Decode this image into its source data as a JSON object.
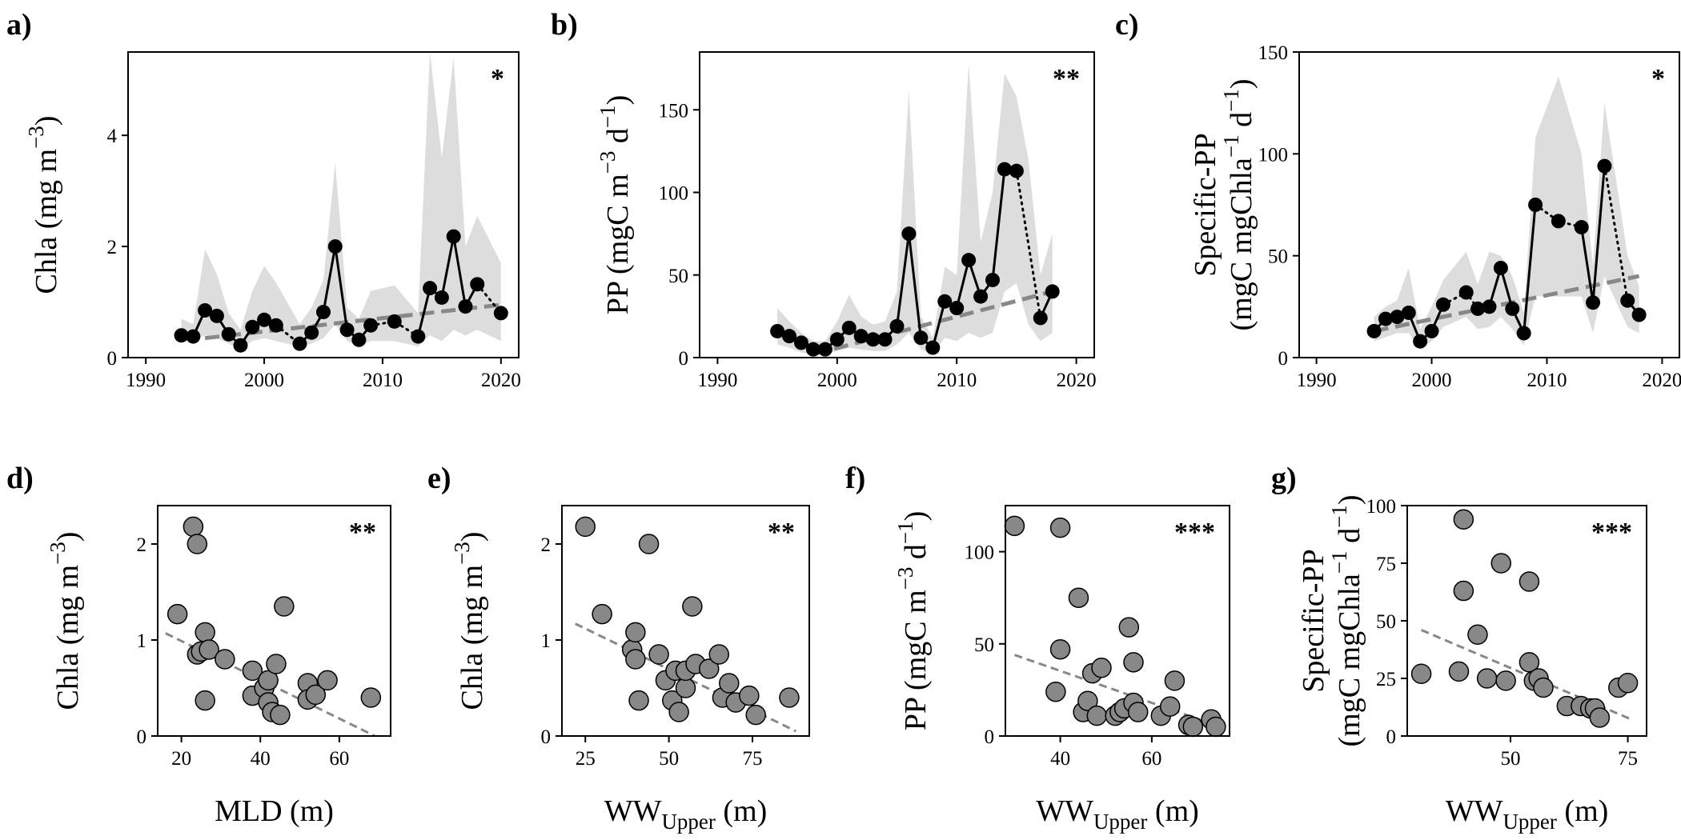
{
  "colors": {
    "line": "#000000",
    "band": "#dddddd",
    "trend": "#888888",
    "scatter_fill": "#888888",
    "scatter_edge": "#000000",
    "background": "#ffffff"
  },
  "chart_data": [
    {
      "panel": "a)",
      "type": "line",
      "significance": "*",
      "xlabel": "",
      "ylabel": "Chla (mg m",
      "ylabel_sup": "−3",
      "ylabel_tail": ")",
      "xlim": [
        1988.5,
        2021.5
      ],
      "ylim": [
        0,
        5.5
      ],
      "xticks": [
        1990,
        2000,
        2010,
        2020
      ],
      "yticks": [
        0,
        2,
        4
      ],
      "series": [
        {
          "x": [
            1993,
            1994,
            1995,
            1996,
            1997,
            1998,
            1999,
            2000,
            2001
          ],
          "y": [
            0.4,
            0.38,
            0.85,
            0.75,
            0.42,
            0.22,
            0.55,
            0.68,
            0.58
          ]
        },
        {
          "x": [
            2003,
            2004,
            2005,
            2006,
            2007,
            2008,
            2009
          ],
          "y": [
            0.25,
            0.45,
            0.82,
            2.0,
            0.5,
            0.32,
            0.58
          ]
        },
        {
          "x": [
            2013,
            2014,
            2015,
            2016,
            2017,
            2018
          ],
          "y": [
            0.38,
            1.25,
            1.08,
            2.18,
            0.92,
            1.32
          ]
        }
      ],
      "gaps": [
        {
          "x": [
            2001,
            2003
          ],
          "y": [
            0.58,
            0.25
          ]
        },
        {
          "x": [
            2009,
            2011,
            2013
          ],
          "y": [
            0.58,
            0.65,
            0.38
          ]
        },
        {
          "x": [
            2018,
            2020
          ],
          "y": [
            1.32,
            0.8
          ]
        }
      ],
      "points": {
        "x": [
          1993,
          1994,
          1995,
          1996,
          1997,
          1998,
          1999,
          2000,
          2001,
          2003,
          2004,
          2005,
          2006,
          2007,
          2008,
          2009,
          2011,
          2013,
          2014,
          2015,
          2016,
          2017,
          2018,
          2020
        ],
        "y": [
          0.4,
          0.38,
          0.85,
          0.75,
          0.42,
          0.22,
          0.55,
          0.68,
          0.58,
          0.25,
          0.45,
          0.82,
          2.0,
          0.5,
          0.32,
          0.58,
          0.65,
          0.38,
          1.25,
          1.08,
          2.18,
          0.92,
          1.32,
          0.8
        ]
      },
      "band": {
        "x": [
          1993,
          1994,
          1995,
          1996,
          1997,
          1998,
          1999,
          2000,
          2001,
          2003,
          2004,
          2005,
          2006,
          2007,
          2008,
          2009,
          2011,
          2013,
          2014,
          2015,
          2016,
          2017,
          2018,
          2020
        ],
        "lower": [
          0.3,
          0.3,
          0.4,
          0.35,
          0.25,
          0.15,
          0.3,
          0.35,
          0.3,
          0.2,
          0.25,
          0.35,
          0.6,
          0.3,
          0.2,
          0.3,
          0.3,
          0.2,
          0.4,
          0.3,
          0.5,
          0.4,
          0.5,
          0.3
        ],
        "upper": [
          0.7,
          0.6,
          1.95,
          1.5,
          0.8,
          0.5,
          1.2,
          1.65,
          1.35,
          0.6,
          0.9,
          1.4,
          3.5,
          0.9,
          0.7,
          1.2,
          1.3,
          0.8,
          5.5,
          3.6,
          5.4,
          2.0,
          2.55,
          1.7
        ]
      },
      "trend": {
        "x": [
          1995,
          2020
        ],
        "y": [
          0.35,
          0.95
        ]
      }
    },
    {
      "panel": "b)",
      "type": "line",
      "significance": "**",
      "xlabel": "",
      "ylabel": "PP (mgC m",
      "ylabel_sup": "−3",
      "ylabel_mid": " d",
      "ylabel_sup2": "−1",
      "ylabel_tail": ")",
      "xlim": [
        1988.5,
        2021.5
      ],
      "ylim": [
        0,
        185
      ],
      "xticks": [
        1990,
        2000,
        2010,
        2020
      ],
      "yticks": [
        0,
        50,
        100,
        150
      ],
      "series": [
        {
          "x": [
            1995,
            1996,
            1997,
            1998,
            1999,
            2000,
            2001,
            2002,
            2003,
            2004,
            2005,
            2006,
            2007,
            2008,
            2009,
            2010,
            2011,
            2012,
            2013,
            2014,
            2015
          ],
          "y": [
            16,
            13,
            9,
            5,
            5,
            11,
            18,
            13,
            11,
            11,
            19,
            75,
            12,
            6,
            34,
            30,
            59,
            37,
            47,
            114,
            113
          ]
        },
        {
          "x": [
            2017,
            2018
          ],
          "y": [
            24,
            40
          ]
        }
      ],
      "gaps": [
        {
          "x": [
            2015,
            2017
          ],
          "y": [
            113,
            24
          ]
        }
      ],
      "points": {
        "x": [
          1995,
          1996,
          1997,
          1998,
          1999,
          2000,
          2001,
          2002,
          2003,
          2004,
          2005,
          2006,
          2007,
          2008,
          2009,
          2010,
          2011,
          2012,
          2013,
          2014,
          2015,
          2017,
          2018
        ],
        "y": [
          16,
          13,
          9,
          5,
          5,
          11,
          18,
          13,
          11,
          11,
          19,
          75,
          12,
          6,
          34,
          30,
          59,
          37,
          47,
          114,
          113,
          24,
          40
        ]
      },
      "band": {
        "x": [
          1995,
          1996,
          1997,
          1998,
          1999,
          2000,
          2001,
          2002,
          2003,
          2004,
          2005,
          2006,
          2007,
          2008,
          2009,
          2010,
          2011,
          2012,
          2013,
          2014,
          2015,
          2016,
          2017,
          2018
        ],
        "lower": [
          8,
          6,
          3,
          2,
          2,
          4,
          6,
          5,
          4,
          4,
          8,
          15,
          5,
          2,
          12,
          10,
          15,
          12,
          15,
          40,
          45,
          20,
          10,
          15
        ],
        "upper": [
          30,
          22,
          15,
          10,
          10,
          22,
          38,
          25,
          20,
          22,
          40,
          162,
          25,
          12,
          55,
          50,
          178,
          70,
          100,
          172,
          158,
          120,
          50,
          75
        ]
      },
      "trend": {
        "x": [
          1998,
          2018
        ],
        "y": [
          2,
          40
        ]
      }
    },
    {
      "panel": "c)",
      "type": "line",
      "significance": "*",
      "xlabel": "",
      "ylabel_line1": "Specific-PP",
      "ylabel": "(mgC mgChla",
      "ylabel_sup": "−1",
      "ylabel_mid": " d",
      "ylabel_sup2": "−1",
      "ylabel_tail": ")",
      "xlim": [
        1988.5,
        2021.5
      ],
      "ylim": [
        0,
        150
      ],
      "xticks": [
        1990,
        2000,
        2010,
        2020
      ],
      "yticks": [
        0,
        50,
        100,
        150
      ],
      "series": [
        {
          "x": [
            1995,
            1996,
            1997,
            1998,
            1999,
            2000,
            2001
          ],
          "y": [
            13,
            19,
            20,
            22,
            8,
            13,
            26
          ]
        },
        {
          "x": [
            2004,
            2005,
            2006,
            2007,
            2008,
            2009
          ],
          "y": [
            24,
            25,
            44,
            24,
            12,
            75
          ]
        },
        {
          "x": [
            2013,
            2014,
            2015
          ],
          "y": [
            64,
            27,
            94
          ]
        },
        {
          "x": [
            2017,
            2018
          ],
          "y": [
            28,
            21
          ]
        }
      ],
      "gaps": [
        {
          "x": [
            2001,
            2003,
            2004
          ],
          "y": [
            26,
            32,
            24
          ]
        },
        {
          "x": [
            2009,
            2011,
            2013
          ],
          "y": [
            75,
            67,
            64
          ]
        },
        {
          "x": [
            2015,
            2017
          ],
          "y": [
            94,
            28
          ]
        }
      ],
      "points": {
        "x": [
          1995,
          1996,
          1997,
          1998,
          1999,
          2000,
          2001,
          2003,
          2004,
          2005,
          2006,
          2007,
          2008,
          2009,
          2011,
          2013,
          2014,
          2015,
          2017,
          2018
        ],
        "y": [
          13,
          19,
          20,
          22,
          8,
          13,
          26,
          32,
          24,
          25,
          44,
          24,
          12,
          75,
          67,
          64,
          27,
          94,
          28,
          21
        ]
      },
      "band": {
        "x": [
          1995,
          1996,
          1997,
          1998,
          1999,
          2000,
          2001,
          2003,
          2004,
          2005,
          2006,
          2007,
          2008,
          2009,
          2011,
          2013,
          2014,
          2015,
          2017,
          2018
        ],
        "lower": [
          8,
          10,
          12,
          12,
          4,
          8,
          15,
          20,
          14,
          15,
          20,
          14,
          6,
          30,
          30,
          30,
          12,
          40,
          15,
          12
        ],
        "upper": [
          20,
          25,
          28,
          44,
          14,
          25,
          38,
          52,
          36,
          52,
          50,
          40,
          22,
          108,
          138,
          100,
          45,
          125,
          50,
          35
        ]
      },
      "trend": {
        "x": [
          1995,
          2018
        ],
        "y": [
          13,
          40
        ]
      }
    },
    {
      "panel": "d)",
      "type": "scatter",
      "significance": "**",
      "xlabel": "MLD (m)",
      "ylabel": "Chla (mg m",
      "ylabel_sup": "−3",
      "ylabel_tail": ")",
      "xlim": [
        14,
        73
      ],
      "ylim": [
        0,
        2.4
      ],
      "xticks": [
        20,
        40,
        60
      ],
      "yticks": [
        0,
        1,
        2
      ],
      "points": {
        "x": [
          19,
          23,
          24,
          24,
          25,
          26,
          26,
          27,
          31,
          38,
          38,
          41,
          42,
          42,
          43,
          44,
          45,
          46,
          52,
          52,
          54,
          57,
          68
        ],
        "y": [
          1.27,
          2.18,
          0.85,
          2.0,
          0.88,
          1.08,
          0.37,
          0.9,
          0.8,
          0.68,
          0.42,
          0.5,
          0.35,
          0.58,
          0.25,
          0.75,
          0.22,
          1.35,
          0.55,
          0.38,
          0.43,
          0.58,
          0.4
        ]
      },
      "trend": {
        "x": [
          16,
          69
        ],
        "y": [
          1.07,
          0.0
        ]
      }
    },
    {
      "panel": "e)",
      "type": "scatter",
      "significance": "**",
      "xlabel": "WW",
      "xlabel_sub": "Upper",
      "xlabel_tail": " (m)",
      "ylabel": "Chla (mg m",
      "ylabel_sup": "−3",
      "ylabel_tail": ")",
      "xlim": [
        18,
        92
      ],
      "ylim": [
        0,
        2.4
      ],
      "xticks": [
        25,
        50,
        75
      ],
      "yticks": [
        0,
        1,
        2
      ],
      "points": {
        "x": [
          25,
          30,
          39,
          40,
          40,
          41,
          44,
          47,
          49,
          51,
          52,
          53,
          55,
          55,
          57,
          58,
          62,
          65,
          66,
          68,
          70,
          74,
          76,
          86
        ],
        "y": [
          2.18,
          1.27,
          0.9,
          1.08,
          0.8,
          0.37,
          2.0,
          0.85,
          0.58,
          0.37,
          0.68,
          0.25,
          0.5,
          0.68,
          1.35,
          0.75,
          0.7,
          0.85,
          0.4,
          0.55,
          0.35,
          0.42,
          0.22,
          0.4
        ]
      },
      "trend": {
        "x": [
          22,
          88
        ],
        "y": [
          1.17,
          0.05
        ]
      }
    },
    {
      "panel": "f)",
      "type": "scatter",
      "significance": "***",
      "xlabel": "WW",
      "xlabel_sub": "Upper",
      "xlabel_tail": " (m)",
      "ylabel": "PP (mgC m",
      "ylabel_sup": "−3",
      "ylabel_mid": " d",
      "ylabel_sup2": "−1",
      "ylabel_tail": ")",
      "xlim": [
        28,
        77
      ],
      "ylim": [
        0,
        125
      ],
      "xticks": [
        40,
        60
      ],
      "yticks": [
        0,
        50,
        100
      ],
      "points": {
        "x": [
          30,
          39,
          40,
          40,
          44,
          45,
          46,
          47,
          48,
          49,
          52,
          53,
          54,
          55,
          56,
          56,
          57,
          62,
          64,
          65,
          68,
          69,
          73,
          74
        ],
        "y": [
          114,
          24,
          113,
          47,
          75,
          13,
          19,
          34,
          11,
          37,
          11,
          13,
          15,
          59,
          18,
          40,
          13,
          11,
          16,
          30,
          6,
          5,
          9,
          5
        ]
      },
      "trend": {
        "x": [
          30,
          75
        ],
        "y": [
          44,
          5
        ]
      }
    },
    {
      "panel": "g)",
      "type": "scatter",
      "significance": "***",
      "xlabel": "WW",
      "xlabel_sub": "Upper",
      "xlabel_tail": " (m)",
      "ylabel_line1": "Specific-PP",
      "ylabel": "(mgC mgChla",
      "ylabel_sup": "−1",
      "ylabel_mid": " d",
      "ylabel_sup2": "−1",
      "ylabel_tail": ")",
      "xlim": [
        28,
        79
      ],
      "ylim": [
        0,
        100
      ],
      "xticks": [
        50,
        75
      ],
      "yticks": [
        0,
        25,
        50,
        75,
        100
      ],
      "points": {
        "x": [
          31,
          39,
          40,
          40,
          43,
          45,
          48,
          49,
          54,
          54,
          55,
          56,
          57,
          62,
          65,
          67,
          68,
          69,
          73,
          75
        ],
        "y": [
          27,
          28,
          94,
          63,
          44,
          25,
          75,
          24,
          32,
          67,
          24,
          25,
          21,
          13,
          13,
          12,
          12,
          8,
          21,
          23
        ]
      },
      "trend": {
        "x": [
          31,
          76
        ],
        "y": [
          46,
          7
        ]
      }
    }
  ]
}
